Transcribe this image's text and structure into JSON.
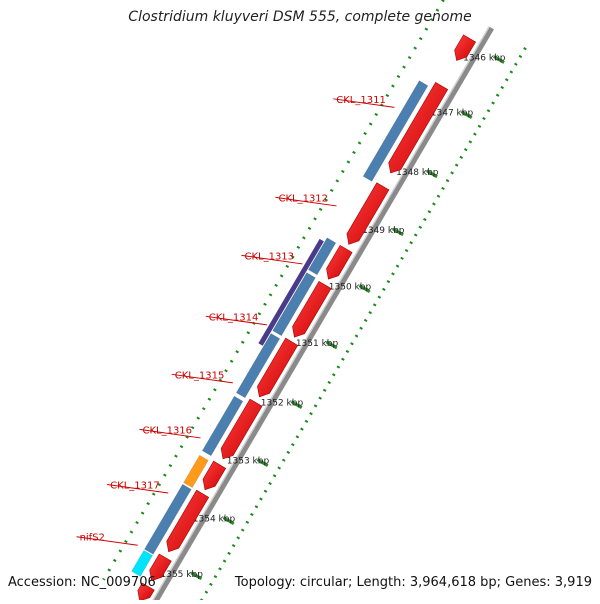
{
  "title": "Clostridium kluyveri DSM 555, complete genome",
  "footer": {
    "accession": "Accession: NC_009706",
    "topology": "Topology: circular; Length: 3,964,618 bp; Genes: 3,919"
  },
  "colors": {
    "backbone": "#8a8a8a",
    "gene": "#ee0000",
    "cds": "#4a7fb0",
    "other_cds": "#4a3a8a",
    "rna": "#ff9a1a",
    "special": "#00e5ff",
    "dotted": "#1a8a1a",
    "label": "#cc0000"
  },
  "ticks": [
    {
      "label": "1346 kbp",
      "f": 0.035
    },
    {
      "label": "1347 kbp",
      "f": 0.13
    },
    {
      "label": "1348 kbp",
      "f": 0.232
    },
    {
      "label": "1349 kbp",
      "f": 0.332
    },
    {
      "label": "1350 kbp",
      "f": 0.43
    },
    {
      "label": "1351 kbp",
      "f": 0.527
    },
    {
      "label": "1352 kbp",
      "f": 0.63
    },
    {
      "label": "1353 kbp",
      "f": 0.73
    },
    {
      "label": "1354 kbp",
      "f": 0.83
    },
    {
      "label": "1355 kbp",
      "f": 0.925
    }
  ],
  "genes": [
    {
      "s": 0.03,
      "e": 0.068,
      "dir": -1
    },
    {
      "s": 0.112,
      "e": 0.262,
      "dir": -1
    },
    {
      "s": 0.285,
      "e": 0.385,
      "dir": -1
    },
    {
      "s": 0.393,
      "e": 0.445,
      "dir": -1
    },
    {
      "s": 0.455,
      "e": 0.545,
      "dir": -1
    },
    {
      "s": 0.553,
      "e": 0.648,
      "dir": -1
    },
    {
      "s": 0.658,
      "e": 0.755,
      "dir": -1
    },
    {
      "s": 0.765,
      "e": 0.808,
      "dir": -1
    },
    {
      "s": 0.815,
      "e": 0.915,
      "dir": -1
    },
    {
      "s": 0.925,
      "e": 0.965,
      "dir": -1
    },
    {
      "s": 0.975,
      "e": 1.0,
      "dir": -1
    }
  ],
  "cds": [
    {
      "s": 0.122,
      "e": 0.287,
      "type": "cds"
    },
    {
      "s": 0.393,
      "e": 0.448,
      "type": "cds"
    },
    {
      "s": 0.453,
      "e": 0.553,
      "type": "cds"
    },
    {
      "s": 0.558,
      "e": 0.66,
      "type": "cds"
    },
    {
      "s": 0.666,
      "e": 0.76,
      "type": "cds"
    },
    {
      "s": 0.768,
      "e": 0.815,
      "type": "rna"
    },
    {
      "s": 0.818,
      "e": 0.93,
      "type": "cds"
    },
    {
      "s": 0.932,
      "e": 0.968,
      "type": "special"
    }
  ],
  "other_cds": [
    {
      "s": 0.4,
      "e": 0.58
    }
  ],
  "gene_labels": [
    {
      "name": "CKL_1311",
      "f": 0.175
    },
    {
      "name": "CKL_1312",
      "f": 0.345
    },
    {
      "name": "CKL_1313",
      "f": 0.445
    },
    {
      "name": "CKL_1314",
      "f": 0.55
    },
    {
      "name": "CKL_1315",
      "f": 0.65
    },
    {
      "name": "CKL_1316",
      "f": 0.745
    },
    {
      "name": "CKL_1317",
      "f": 0.84
    },
    {
      "name": "nifS2",
      "f": 0.93
    }
  ]
}
